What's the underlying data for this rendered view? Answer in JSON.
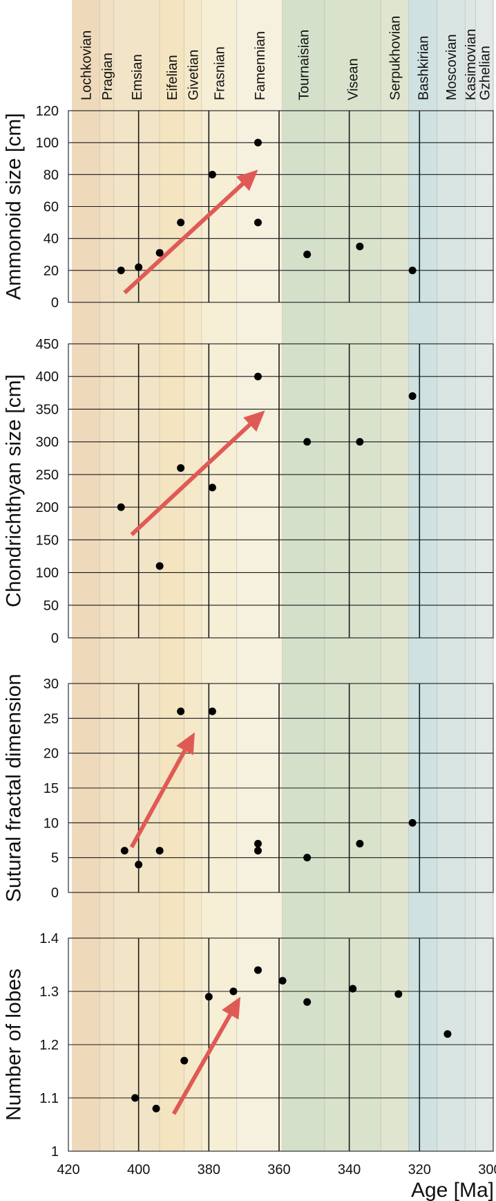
{
  "chart_data": {
    "type": "scatter",
    "x_axis": {
      "label": "Age [Ma]",
      "range": [
        420,
        299
      ],
      "ticks": [
        420,
        400,
        380,
        360,
        340,
        320,
        300
      ]
    },
    "stages": [
      {
        "name": "Lochkovian",
        "start": 419,
        "end": 411,
        "color": "#efd9bb"
      },
      {
        "name": "Pragian",
        "start": 411,
        "end": 407,
        "color": "#f1e0c2"
      },
      {
        "name": "Emsian",
        "start": 407,
        "end": 394,
        "color": "#f2e4c6"
      },
      {
        "name": "Eifelian",
        "start": 394,
        "end": 387,
        "color": "#f4e4bf"
      },
      {
        "name": "Givetian",
        "start": 387,
        "end": 382,
        "color": "#f5e9c9"
      },
      {
        "name": "Frasnian",
        "start": 382,
        "end": 372,
        "color": "#f6eed5"
      },
      {
        "name": "Famennian",
        "start": 372,
        "end": 359,
        "color": "#f6f0de"
      },
      {
        "name": "Tournaisian",
        "start": 359,
        "end": 347,
        "color": "#d5e0cb"
      },
      {
        "name": "Visean",
        "start": 347,
        "end": 331,
        "color": "#d9e3cc"
      },
      {
        "name": "Serpukhovian",
        "start": 331,
        "end": 323,
        "color": "#e0e5cf"
      },
      {
        "name": "Bashkirian",
        "start": 323,
        "end": 315,
        "color": "#cfe2e1"
      },
      {
        "name": "Moscovian",
        "start": 315,
        "end": 307,
        "color": "#d9e5e2"
      },
      {
        "name": "Kasimovian",
        "start": 307,
        "end": 304,
        "color": "#dde6e3"
      },
      {
        "name": "Gzhelian",
        "start": 304,
        "end": 299,
        "color": "#e2e9e6"
      }
    ],
    "panels": [
      {
        "ylabel": "Ammonoid size [cm]",
        "ylim": [
          0,
          120
        ],
        "yticks": [
          0,
          20,
          40,
          60,
          80,
          100,
          120
        ],
        "ytick_labels": [
          "0",
          "20",
          "40",
          "60",
          "80",
          "100",
          "120"
        ],
        "points": [
          {
            "x": 405,
            "y": 20
          },
          {
            "x": 400,
            "y": 22
          },
          {
            "x": 394,
            "y": 31
          },
          {
            "x": 388,
            "y": 50
          },
          {
            "x": 379,
            "y": 80
          },
          {
            "x": 366,
            "y": 100
          },
          {
            "x": 366,
            "y": 50
          },
          {
            "x": 352,
            "y": 30
          },
          {
            "x": 337,
            "y": 35
          },
          {
            "x": 322,
            "y": 20
          }
        ],
        "trend_arrow": {
          "from": [
            404,
            6
          ],
          "to": [
            366,
            83
          ]
        }
      },
      {
        "ylabel": "Chondrichthyan size [cm]",
        "ylim": [
          0,
          450
        ],
        "yticks": [
          0,
          50,
          100,
          150,
          200,
          250,
          300,
          350,
          400,
          450
        ],
        "ytick_labels": [
          "0",
          "50",
          "100",
          "150",
          "200",
          "250",
          "300",
          "350",
          "400",
          "450"
        ],
        "points": [
          {
            "x": 405,
            "y": 200
          },
          {
            "x": 394,
            "y": 110
          },
          {
            "x": 388,
            "y": 260
          },
          {
            "x": 379,
            "y": 230
          },
          {
            "x": 366,
            "y": 400
          },
          {
            "x": 352,
            "y": 300
          },
          {
            "x": 337,
            "y": 300
          },
          {
            "x": 322,
            "y": 370
          }
        ],
        "trend_arrow": {
          "from": [
            402,
            158
          ],
          "to": [
            364,
            348
          ]
        }
      },
      {
        "ylabel": "Sutural fractal dimension",
        "ylim": [
          0,
          30
        ],
        "yticks": [
          0,
          5,
          10,
          15,
          20,
          25,
          30
        ],
        "ytick_labels": [
          "0",
          "5",
          "10",
          "15",
          "20",
          "25",
          "30"
        ],
        "points": [
          {
            "x": 404,
            "y": 6
          },
          {
            "x": 400,
            "y": 4
          },
          {
            "x": 394,
            "y": 6
          },
          {
            "x": 388,
            "y": 26
          },
          {
            "x": 379,
            "y": 26
          },
          {
            "x": 366,
            "y": 7
          },
          {
            "x": 366,
            "y": 6
          },
          {
            "x": 352,
            "y": 5
          },
          {
            "x": 337,
            "y": 7
          },
          {
            "x": 322,
            "y": 10
          }
        ],
        "trend_arrow": {
          "from": [
            402,
            6.5
          ],
          "to": [
            384,
            23
          ]
        }
      },
      {
        "ylabel": "Number of lobes",
        "ylim": [
          1,
          1.4
        ],
        "yticks": [
          1,
          1.1,
          1.2,
          1.3,
          1.4
        ],
        "ytick_labels": [
          "1",
          "1.1",
          "1.2",
          "1.3",
          "1.4"
        ],
        "points": [
          {
            "x": 401,
            "y": 1.1
          },
          {
            "x": 395,
            "y": 1.08
          },
          {
            "x": 387,
            "y": 1.17
          },
          {
            "x": 380,
            "y": 1.29
          },
          {
            "x": 373,
            "y": 1.3
          },
          {
            "x": 366,
            "y": 1.34
          },
          {
            "x": 359,
            "y": 1.32
          },
          {
            "x": 352,
            "y": 1.28
          },
          {
            "x": 339,
            "y": 1.305
          },
          {
            "x": 326,
            "y": 1.295
          },
          {
            "x": 312,
            "y": 1.22
          }
        ],
        "trend_arrow": {
          "from": [
            390,
            1.07
          ],
          "to": [
            371,
            1.29
          ]
        }
      }
    ],
    "grid": true,
    "vertical_gridlines": [
      400,
      380,
      360,
      340,
      320
    ],
    "marker_color": "#000000",
    "arrow_color": "#e05a55"
  }
}
